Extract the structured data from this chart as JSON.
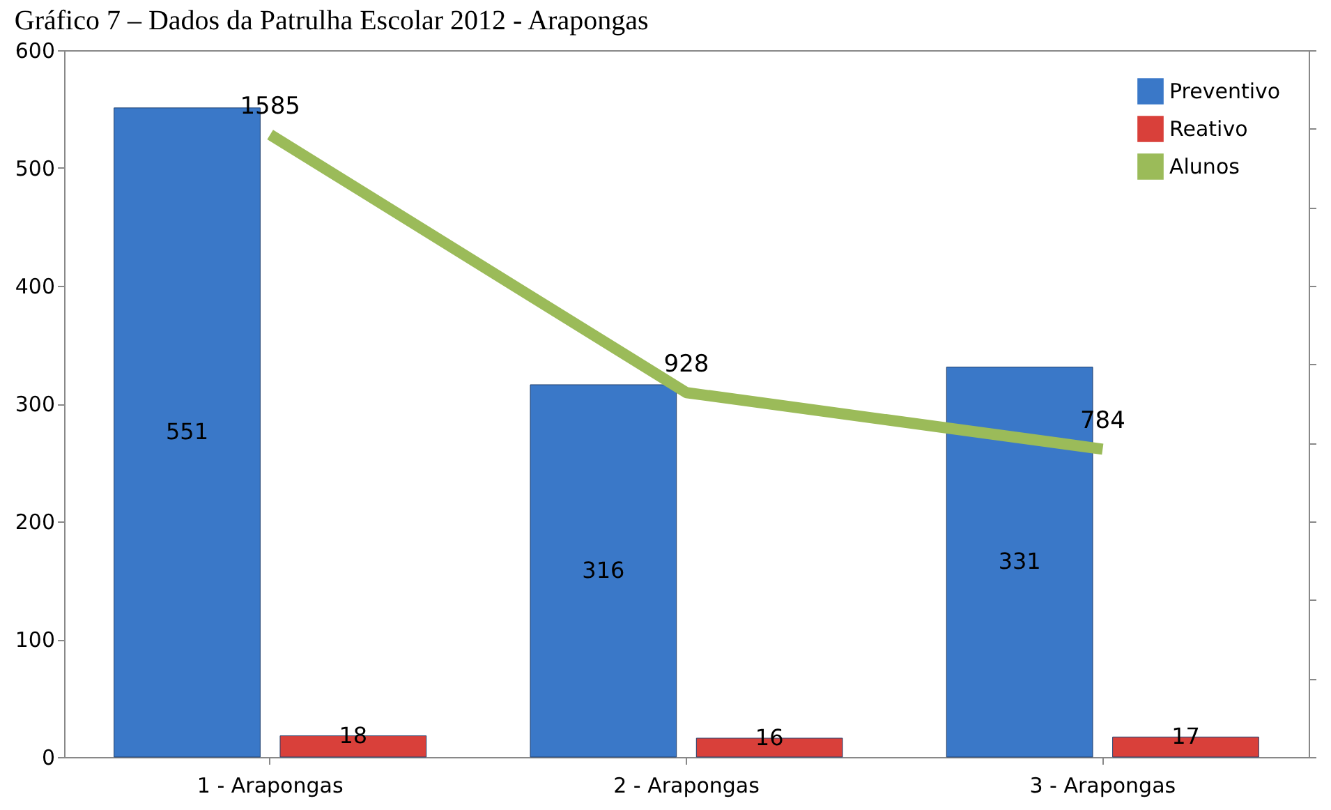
{
  "chart_data": {
    "type": "bar",
    "title": "Gráfico 7 – Dados da Patrulha Escolar 2012 - Arapongas",
    "categories": [
      "1 - Arapongas",
      "2 - Arapongas",
      "3 - Arapongas"
    ],
    "series": [
      {
        "name": "Preventivo",
        "color": "#3a78c8",
        "values": [
          551,
          316,
          331
        ]
      },
      {
        "name": "Reativo",
        "color": "#d9403a",
        "values": [
          18,
          16,
          17
        ]
      },
      {
        "name": "Alunos",
        "type": "line",
        "axis": "y2",
        "color": "#9bbb59",
        "values": [
          1585,
          928,
          784
        ]
      }
    ],
    "ylim": [
      0,
      600
    ],
    "yticks": [
      0,
      100,
      200,
      300,
      400,
      500,
      600
    ],
    "y2lim": [
      0,
      1800
    ],
    "tick_labels": "xy",
    "data_labels": true,
    "grid": false,
    "legend": "top right"
  }
}
